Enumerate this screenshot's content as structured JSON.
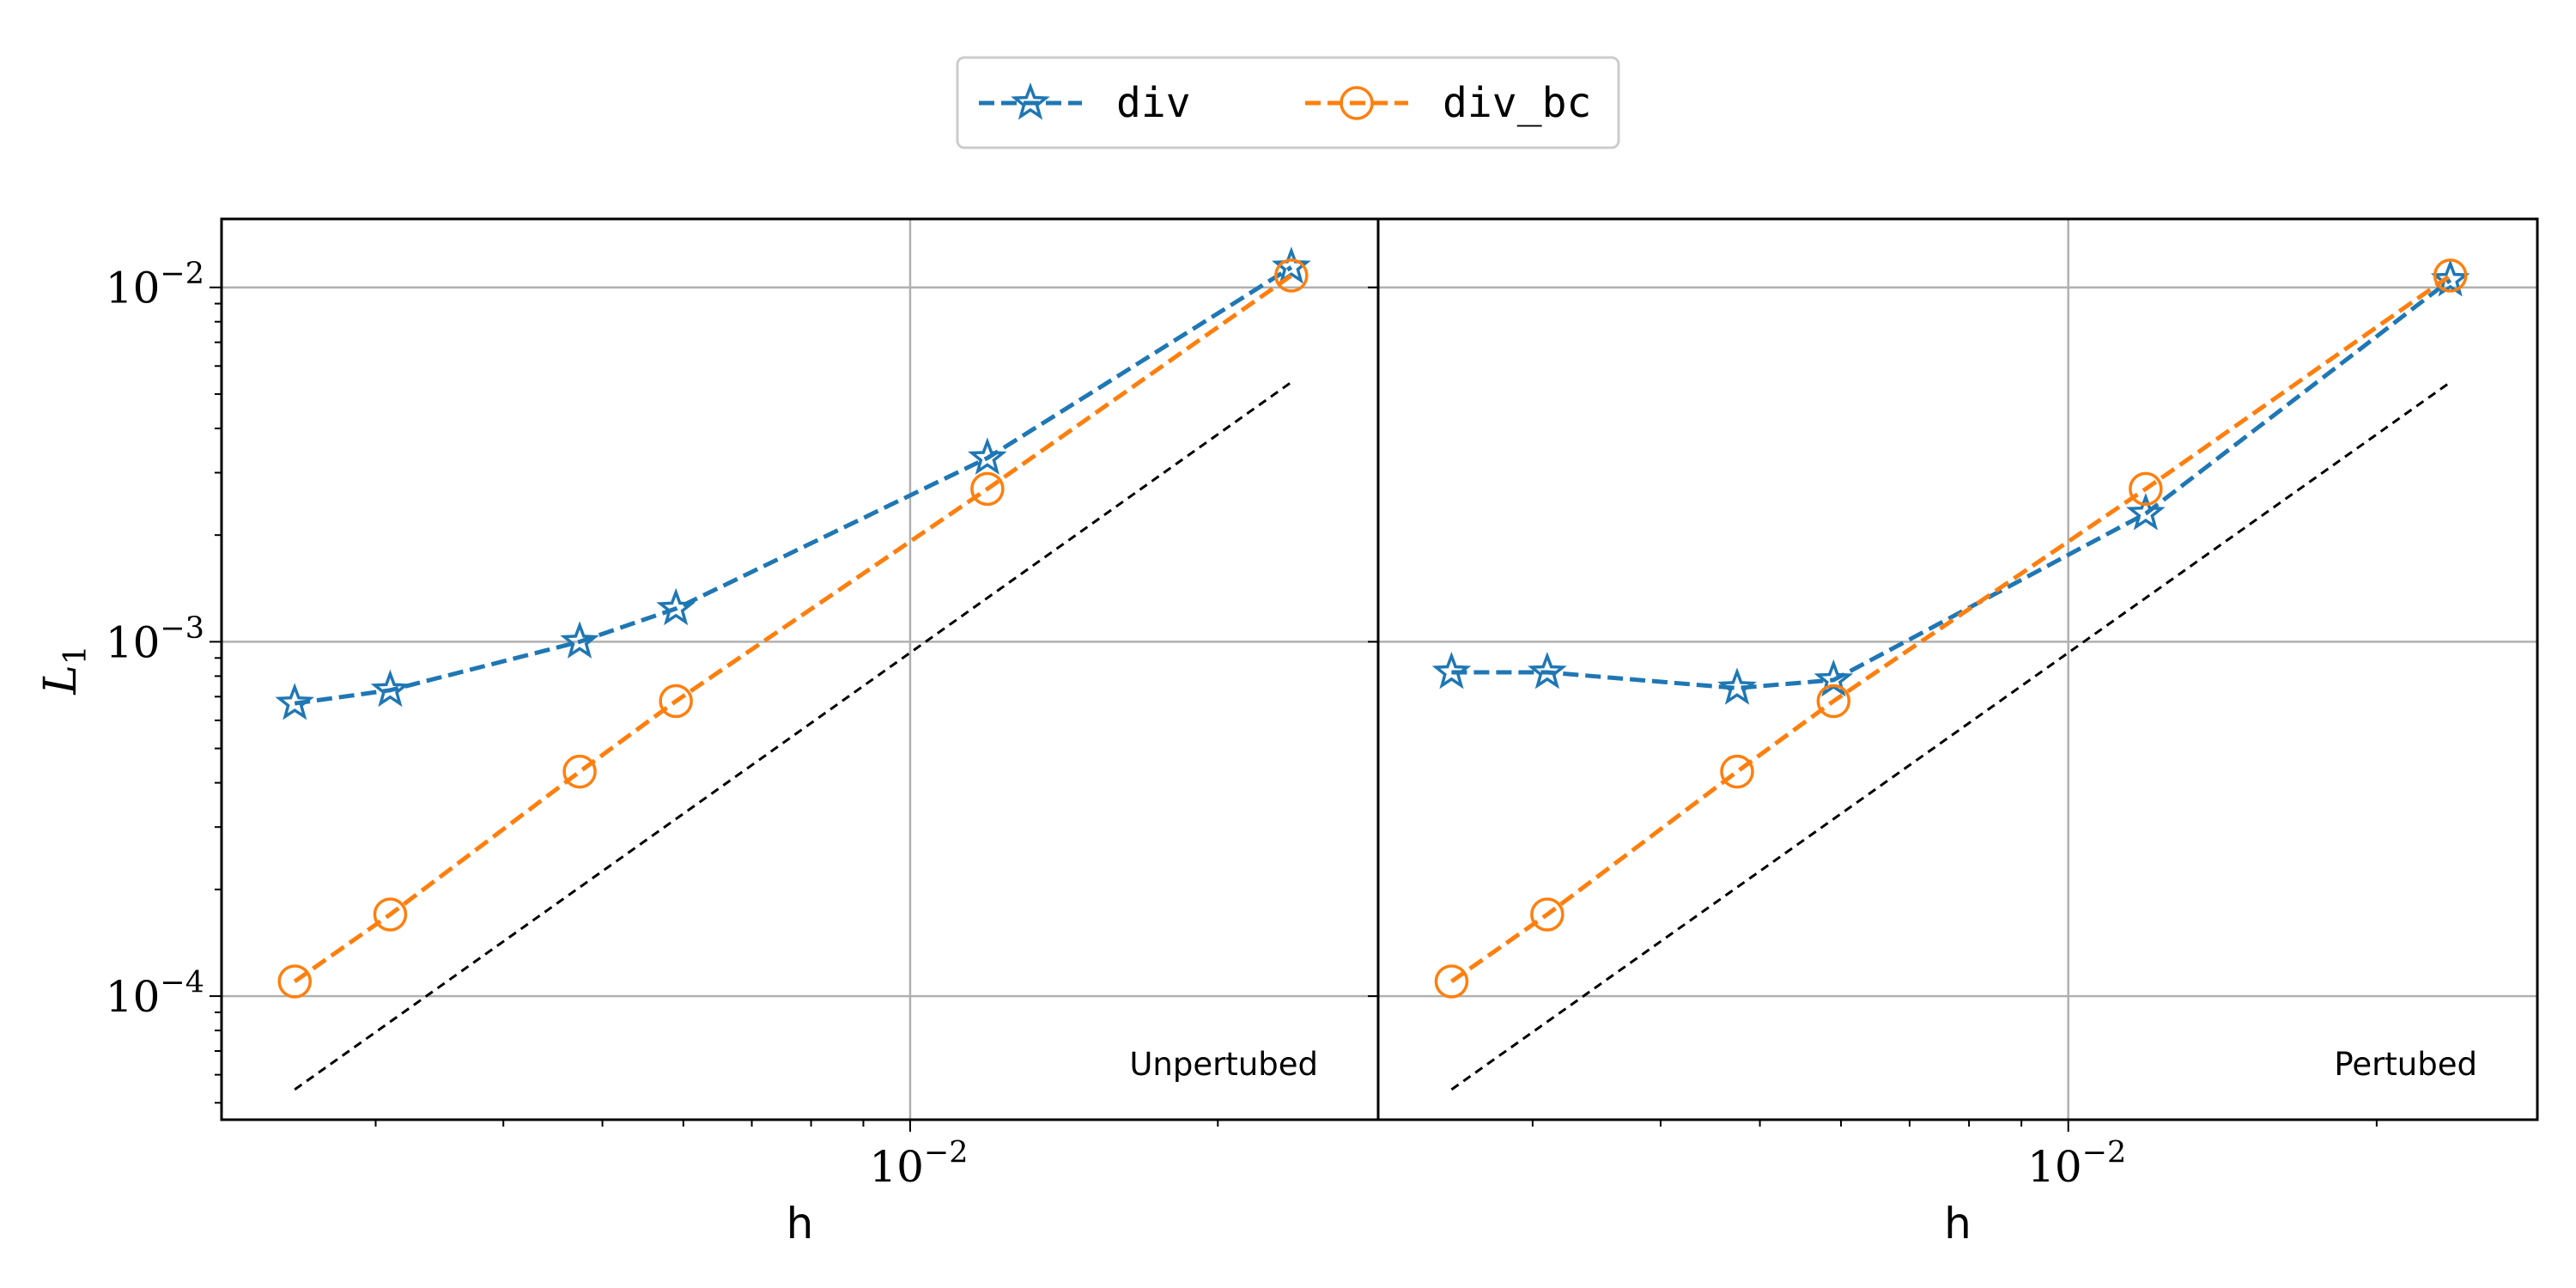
{
  "chart_data": {
    "type": "line",
    "xscale": "log",
    "yscale": "log",
    "grid": true,
    "legend": {
      "placement": "top-center",
      "entries": [
        {
          "label": "div",
          "color": "#1f77b4",
          "marker": "star"
        },
        {
          "label": "div_bc",
          "color": "#ff7f0e",
          "marker": "circle"
        }
      ]
    },
    "ylabel": {
      "base": "L",
      "sub": "1"
    },
    "y_ticks": [
      {
        "base": "10",
        "exp": "−2"
      },
      {
        "base": "10",
        "exp": "−3"
      },
      {
        "base": "10",
        "exp": "−4"
      }
    ],
    "y_tick_values": [
      0.01,
      0.001,
      0.0001
    ],
    "ylim": [
      4.48e-05,
      0.0156
    ],
    "panels": [
      {
        "annotation": "Unpertubed",
        "xlabel": "h",
        "x_ticks": [
          {
            "base": "10",
            "exp": "−2"
          }
        ],
        "x_tick_values": [
          0.01
        ],
        "xlim": [
          0.00212,
          0.0287
        ],
        "series": [
          {
            "name": "div",
            "color": "#1f77b4",
            "marker": "star",
            "x": [
              0.0025,
              0.0031,
              0.00475,
              0.0059,
              0.0119,
              0.0236
            ],
            "y": [
              0.00067,
              0.00073,
              0.001,
              0.00124,
              0.0033,
              0.0114
            ]
          },
          {
            "name": "div_bc",
            "color": "#ff7f0e",
            "marker": "circle",
            "x": [
              0.0025,
              0.0031,
              0.00475,
              0.0059,
              0.0119,
              0.0236
            ],
            "y": [
              0.00011,
              0.00017,
              0.00043,
              0.00068,
              0.0027,
              0.0108
            ]
          }
        ],
        "reference": {
          "color": "#000000",
          "x": [
            0.0025,
            0.0236
          ],
          "y": [
            5.45e-05,
            0.0054
          ]
        }
      },
      {
        "annotation": "Pertubed",
        "xlabel": "h",
        "x_ticks": [
          {
            "base": "10",
            "exp": "−2"
          }
        ],
        "x_tick_values": [
          0.01
        ],
        "xlim": [
          0.00212,
          0.0287
        ],
        "series": [
          {
            "name": "div",
            "color": "#1f77b4",
            "marker": "star",
            "x": [
              0.0025,
              0.0031,
              0.00475,
              0.0059,
              0.0119,
              0.0236
            ],
            "y": [
              0.00082,
              0.00082,
              0.00074,
              0.00078,
              0.0023,
              0.0105
            ]
          },
          {
            "name": "div_bc",
            "color": "#ff7f0e",
            "marker": "circle",
            "x": [
              0.0025,
              0.0031,
              0.00475,
              0.0059,
              0.0119,
              0.0236
            ],
            "y": [
              0.00011,
              0.00017,
              0.00043,
              0.00068,
              0.0027,
              0.0108
            ]
          }
        ],
        "reference": {
          "color": "#000000",
          "x": [
            0.0025,
            0.0236
          ],
          "y": [
            5.45e-05,
            0.0054
          ]
        }
      }
    ]
  }
}
